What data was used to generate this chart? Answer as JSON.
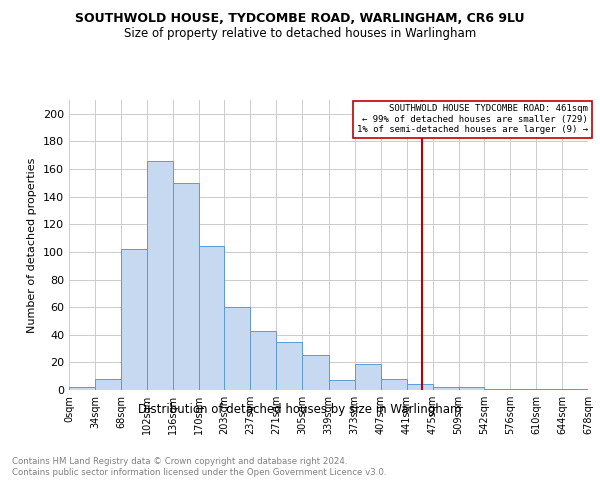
{
  "title": "SOUTHWOLD HOUSE, TYDCOMBE ROAD, WARLINGHAM, CR6 9LU",
  "subtitle": "Size of property relative to detached houses in Warlingham",
  "xlabel": "Distribution of detached houses by size in Warlingham",
  "ylabel": "Number of detached properties",
  "bar_color": "#c6d9f1",
  "bar_edge_color": "#5b9bd5",
  "bins": [
    0,
    34,
    68,
    102,
    136,
    170,
    203,
    237,
    271,
    305,
    339,
    373,
    407,
    441,
    475,
    509,
    542,
    576,
    610,
    644,
    678
  ],
  "values": [
    2,
    8,
    102,
    166,
    150,
    104,
    60,
    43,
    35,
    25,
    7,
    19,
    8,
    4,
    2,
    2,
    1,
    1,
    1,
    1
  ],
  "tick_labels": [
    "0sqm",
    "34sqm",
    "68sqm",
    "102sqm",
    "136sqm",
    "170sqm",
    "203sqm",
    "237sqm",
    "271sqm",
    "305sqm",
    "339sqm",
    "373sqm",
    "407sqm",
    "441sqm",
    "475sqm",
    "509sqm",
    "542sqm",
    "576sqm",
    "610sqm",
    "644sqm",
    "678sqm"
  ],
  "vline_x": 461,
  "vline_color": "#c00000",
  "annotation_text": "SOUTHWOLD HOUSE TYDCOMBE ROAD: 461sqm\n← 99% of detached houses are smaller (729)\n1% of semi-detached houses are larger (9) →",
  "annotation_box_color": "#c00000",
  "ylim": [
    0,
    210
  ],
  "yticks": [
    0,
    20,
    40,
    60,
    80,
    100,
    120,
    140,
    160,
    180,
    200
  ],
  "grid_color": "#cccccc",
  "background_color": "#ffffff",
  "footer_text": "Contains HM Land Registry data © Crown copyright and database right 2024.\nContains public sector information licensed under the Open Government Licence v3.0.",
  "footer_color": "#808080"
}
